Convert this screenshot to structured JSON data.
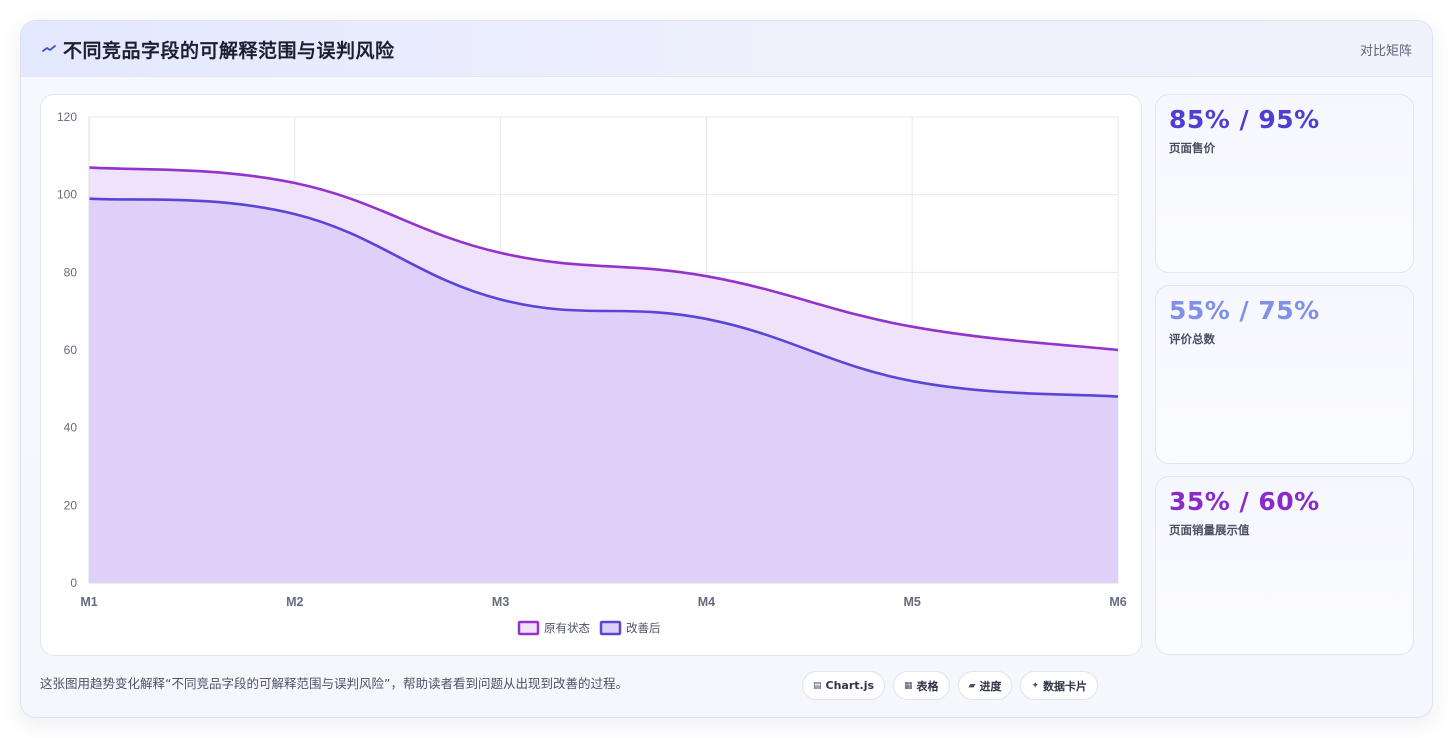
{
  "header": {
    "title": "不同竞品字段的可解释范围与误判风险",
    "mode_link": "对比矩阵"
  },
  "chart_data": {
    "type": "area",
    "categories": [
      "M1",
      "M2",
      "M3",
      "M4",
      "M5",
      "M6"
    ],
    "series": [
      {
        "name": "原有状态",
        "values": [
          107,
          103,
          85,
          79,
          66,
          60
        ],
        "color": "#9333cc",
        "fill": "#efe2fa"
      },
      {
        "name": "改善后",
        "values": [
          99,
          95,
          73,
          68,
          52,
          48
        ],
        "color": "#5b45d6",
        "fill": "#dccff8"
      }
    ],
    "y_ticks": [
      "0",
      "20",
      "40",
      "60",
      "80",
      "100",
      "120"
    ],
    "ylim": [
      0,
      120
    ],
    "grid": true,
    "legend_position": "bottom-center"
  },
  "stats": [
    {
      "value": "85% / 95%",
      "label": "页面售价",
      "color": "#4f3fd1"
    },
    {
      "value": "55% / 75%",
      "label": "评价总数",
      "color": "#8090e6"
    },
    {
      "value": "35% / 60%",
      "label": "页面销量展示值",
      "color": "#8a2bc9"
    }
  ],
  "footer": {
    "description": "这张图用趋势变化解释“不同竞品字段的可解释范围与误判风险”，帮助读者看到问题从出现到改善的过程。",
    "chips": [
      {
        "icon": "▤",
        "label": "Chart.js",
        "icon_name": "chart-icon"
      },
      {
        "icon": "▦",
        "label": "表格",
        "icon_name": "table-icon"
      },
      {
        "icon": "▰",
        "label": "进度",
        "icon_name": "progress-icon"
      },
      {
        "icon": "✦",
        "label": "数据卡片",
        "icon_name": "sparkle-icon"
      }
    ]
  }
}
